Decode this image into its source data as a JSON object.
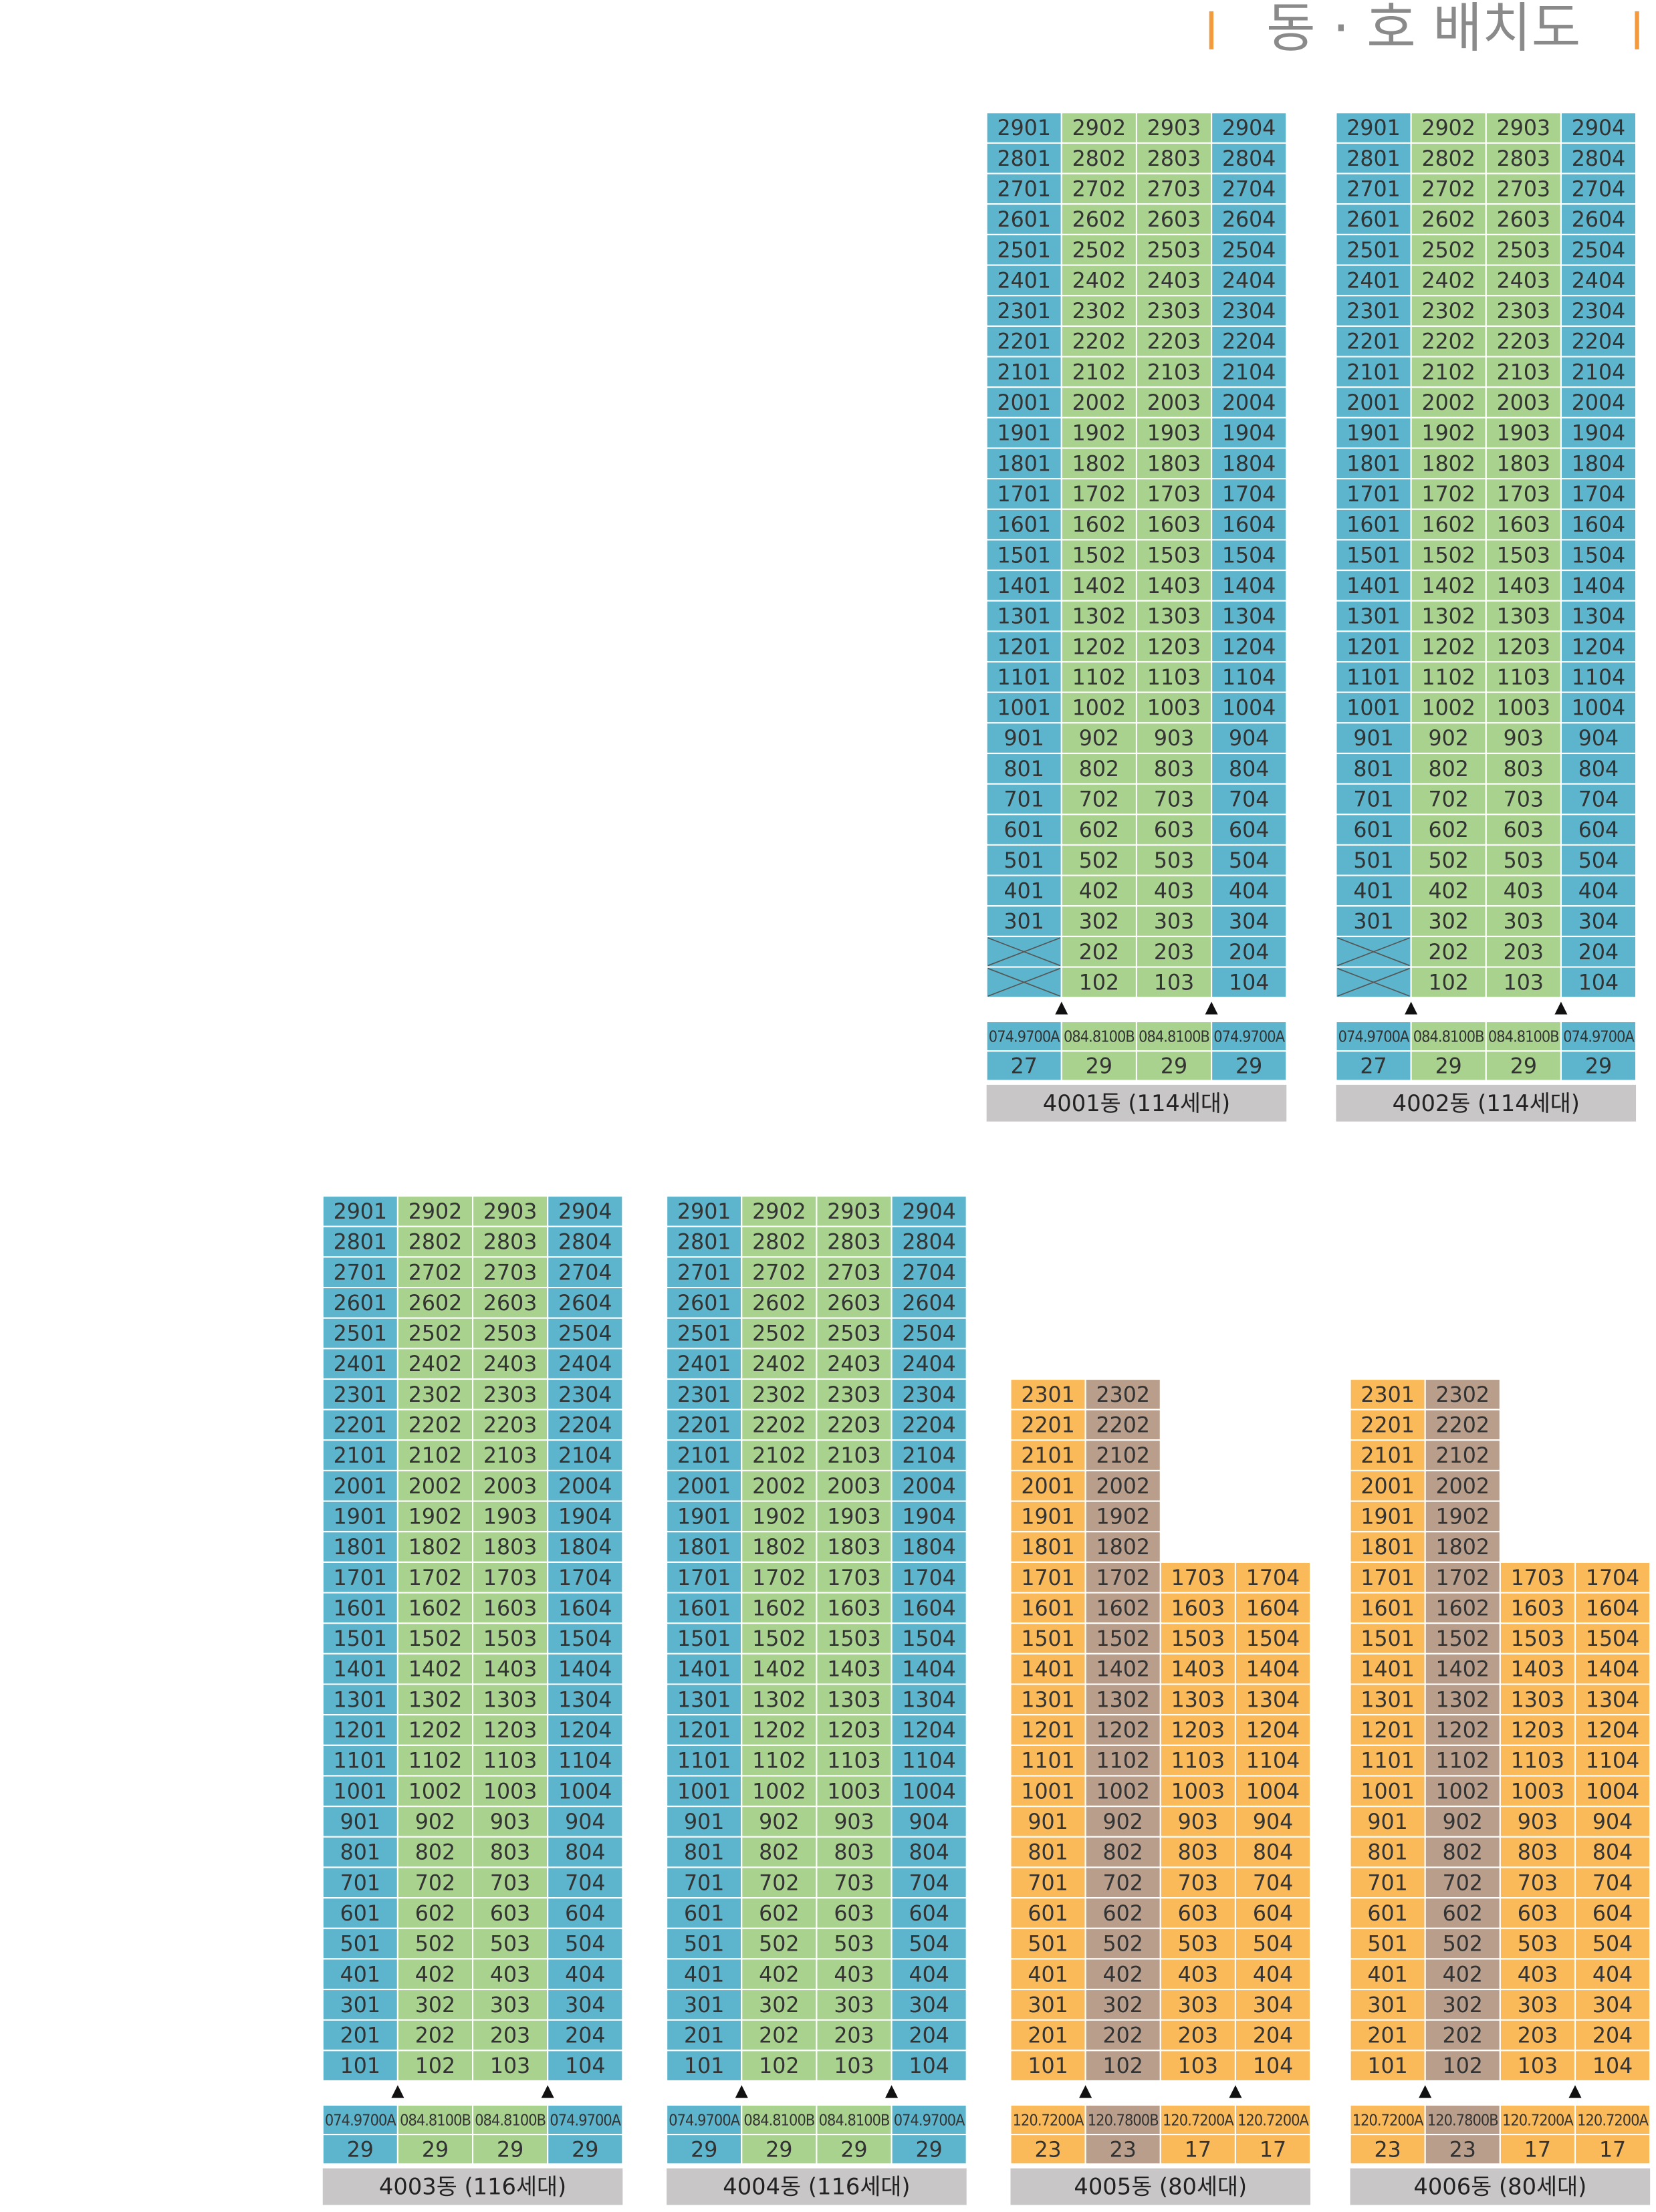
{
  "header": {
    "title": "동 · 호 배치도"
  },
  "buildings": [
    {
      "name": "4001동 (114세대)",
      "colors": [
        "#5cb5cd",
        "#a9d28f",
        "#a9d28f",
        "#5cb5cd"
      ],
      "rows": [
        [
          "2901",
          "2902",
          "2903",
          "2904"
        ],
        [
          "2801",
          "2802",
          "2803",
          "2804"
        ],
        [
          "2701",
          "2702",
          "2703",
          "2704"
        ],
        [
          "2601",
          "2602",
          "2603",
          "2604"
        ],
        [
          "2501",
          "2502",
          "2503",
          "2504"
        ],
        [
          "2401",
          "2402",
          "2403",
          "2404"
        ],
        [
          "2301",
          "2302",
          "2303",
          "2304"
        ],
        [
          "2201",
          "2202",
          "2203",
          "2204"
        ],
        [
          "2101",
          "2102",
          "2103",
          "2104"
        ],
        [
          "2001",
          "2002",
          "2003",
          "2004"
        ],
        [
          "1901",
          "1902",
          "1903",
          "1904"
        ],
        [
          "1801",
          "1802",
          "1803",
          "1804"
        ],
        [
          "1701",
          "1702",
          "1703",
          "1704"
        ],
        [
          "1601",
          "1602",
          "1603",
          "1604"
        ],
        [
          "1501",
          "1502",
          "1503",
          "1504"
        ],
        [
          "1401",
          "1402",
          "1403",
          "1404"
        ],
        [
          "1301",
          "1302",
          "1303",
          "1304"
        ],
        [
          "1201",
          "1202",
          "1203",
          "1204"
        ],
        [
          "1101",
          "1102",
          "1103",
          "1104"
        ],
        [
          "1001",
          "1002",
          "1003",
          "1004"
        ],
        [
          "901",
          "902",
          "903",
          "904"
        ],
        [
          "801",
          "802",
          "803",
          "804"
        ],
        [
          "701",
          "702",
          "703",
          "704"
        ],
        [
          "601",
          "602",
          "603",
          "604"
        ],
        [
          "501",
          "502",
          "503",
          "504"
        ],
        [
          "401",
          "402",
          "403",
          "404"
        ],
        [
          "301",
          "302",
          "303",
          "304"
        ],
        [
          null,
          "202",
          "203",
          "204"
        ],
        [
          null,
          "102",
          "103",
          "104"
        ]
      ],
      "types": [
        "074.9700A",
        "084.8100B",
        "084.8100B",
        "074.9700A"
      ],
      "counts": [
        27,
        29,
        29,
        29
      ]
    },
    {
      "name": "4002동 (114세대)",
      "colors": [
        "#5cb5cd",
        "#a9d28f",
        "#a9d28f",
        "#5cb5cd"
      ],
      "rows": [
        [
          "2901",
          "2902",
          "2903",
          "2904"
        ],
        [
          "2801",
          "2802",
          "2803",
          "2804"
        ],
        [
          "2701",
          "2702",
          "2703",
          "2704"
        ],
        [
          "2601",
          "2602",
          "2603",
          "2604"
        ],
        [
          "2501",
          "2502",
          "2503",
          "2504"
        ],
        [
          "2401",
          "2402",
          "2403",
          "2404"
        ],
        [
          "2301",
          "2302",
          "2303",
          "2304"
        ],
        [
          "2201",
          "2202",
          "2203",
          "2204"
        ],
        [
          "2101",
          "2102",
          "2103",
          "2104"
        ],
        [
          "2001",
          "2002",
          "2003",
          "2004"
        ],
        [
          "1901",
          "1902",
          "1903",
          "1904"
        ],
        [
          "1801",
          "1802",
          "1803",
          "1804"
        ],
        [
          "1701",
          "1702",
          "1703",
          "1704"
        ],
        [
          "1601",
          "1602",
          "1603",
          "1604"
        ],
        [
          "1501",
          "1502",
          "1503",
          "1504"
        ],
        [
          "1401",
          "1402",
          "1403",
          "1404"
        ],
        [
          "1301",
          "1302",
          "1303",
          "1304"
        ],
        [
          "1201",
          "1202",
          "1203",
          "1204"
        ],
        [
          "1101",
          "1102",
          "1103",
          "1104"
        ],
        [
          "1001",
          "1002",
          "1003",
          "1004"
        ],
        [
          "901",
          "902",
          "903",
          "904"
        ],
        [
          "801",
          "802",
          "803",
          "804"
        ],
        [
          "701",
          "702",
          "703",
          "704"
        ],
        [
          "601",
          "602",
          "603",
          "604"
        ],
        [
          "501",
          "502",
          "503",
          "504"
        ],
        [
          "401",
          "402",
          "403",
          "404"
        ],
        [
          "301",
          "302",
          "303",
          "304"
        ],
        [
          null,
          "202",
          "203",
          "204"
        ],
        [
          null,
          "102",
          "103",
          "104"
        ]
      ],
      "types": [
        "074.9700A",
        "084.8100B",
        "084.8100B",
        "074.9700A"
      ],
      "counts": [
        27,
        29,
        29,
        29
      ]
    },
    {
      "name": "4003동 (116세대)",
      "colors": [
        "#5cb5cd",
        "#a9d28f",
        "#a9d28f",
        "#5cb5cd"
      ],
      "rows": [
        [
          "2901",
          "2902",
          "2903",
          "2904"
        ],
        [
          "2801",
          "2802",
          "2803",
          "2804"
        ],
        [
          "2701",
          "2702",
          "2703",
          "2704"
        ],
        [
          "2601",
          "2602",
          "2603",
          "2604"
        ],
        [
          "2501",
          "2502",
          "2503",
          "2504"
        ],
        [
          "2401",
          "2402",
          "2403",
          "2404"
        ],
        [
          "2301",
          "2302",
          "2303",
          "2304"
        ],
        [
          "2201",
          "2202",
          "2203",
          "2204"
        ],
        [
          "2101",
          "2102",
          "2103",
          "2104"
        ],
        [
          "2001",
          "2002",
          "2003",
          "2004"
        ],
        [
          "1901",
          "1902",
          "1903",
          "1904"
        ],
        [
          "1801",
          "1802",
          "1803",
          "1804"
        ],
        [
          "1701",
          "1702",
          "1703",
          "1704"
        ],
        [
          "1601",
          "1602",
          "1603",
          "1604"
        ],
        [
          "1501",
          "1502",
          "1503",
          "1504"
        ],
        [
          "1401",
          "1402",
          "1403",
          "1404"
        ],
        [
          "1301",
          "1302",
          "1303",
          "1304"
        ],
        [
          "1201",
          "1202",
          "1203",
          "1204"
        ],
        [
          "1101",
          "1102",
          "1103",
          "1104"
        ],
        [
          "1001",
          "1002",
          "1003",
          "1004"
        ],
        [
          "901",
          "902",
          "903",
          "904"
        ],
        [
          "801",
          "802",
          "803",
          "804"
        ],
        [
          "701",
          "702",
          "703",
          "704"
        ],
        [
          "601",
          "602",
          "603",
          "604"
        ],
        [
          "501",
          "502",
          "503",
          "504"
        ],
        [
          "401",
          "402",
          "403",
          "404"
        ],
        [
          "301",
          "302",
          "303",
          "304"
        ],
        [
          "201",
          "202",
          "203",
          "204"
        ],
        [
          "101",
          "102",
          "103",
          "104"
        ]
      ],
      "types": [
        "074.9700A",
        "084.8100B",
        "084.8100B",
        "074.9700A"
      ],
      "counts": [
        29,
        29,
        29,
        29
      ]
    },
    {
      "name": "4004동 (116세대)",
      "colors": [
        "#5cb5cd",
        "#a9d28f",
        "#a9d28f",
        "#5cb5cd"
      ],
      "rows": [
        [
          "2901",
          "2902",
          "2903",
          "2904"
        ],
        [
          "2801",
          "2802",
          "2803",
          "2804"
        ],
        [
          "2701",
          "2702",
          "2703",
          "2704"
        ],
        [
          "2601",
          "2602",
          "2603",
          "2604"
        ],
        [
          "2501",
          "2502",
          "2503",
          "2504"
        ],
        [
          "2401",
          "2402",
          "2403",
          "2404"
        ],
        [
          "2301",
          "2302",
          "2303",
          "2304"
        ],
        [
          "2201",
          "2202",
          "2203",
          "2204"
        ],
        [
          "2101",
          "2102",
          "2103",
          "2104"
        ],
        [
          "2001",
          "2002",
          "2003",
          "2004"
        ],
        [
          "1901",
          "1902",
          "1903",
          "1904"
        ],
        [
          "1801",
          "1802",
          "1803",
          "1804"
        ],
        [
          "1701",
          "1702",
          "1703",
          "1704"
        ],
        [
          "1601",
          "1602",
          "1603",
          "1604"
        ],
        [
          "1501",
          "1502",
          "1503",
          "1504"
        ],
        [
          "1401",
          "1402",
          "1403",
          "1404"
        ],
        [
          "1301",
          "1302",
          "1303",
          "1304"
        ],
        [
          "1201",
          "1202",
          "1203",
          "1204"
        ],
        [
          "1101",
          "1102",
          "1103",
          "1104"
        ],
        [
          "1001",
          "1002",
          "1003",
          "1004"
        ],
        [
          "901",
          "902",
          "903",
          "904"
        ],
        [
          "801",
          "802",
          "803",
          "804"
        ],
        [
          "701",
          "702",
          "703",
          "704"
        ],
        [
          "601",
          "602",
          "603",
          "604"
        ],
        [
          "501",
          "502",
          "503",
          "504"
        ],
        [
          "401",
          "402",
          "403",
          "404"
        ],
        [
          "301",
          "302",
          "303",
          "304"
        ],
        [
          "201",
          "202",
          "203",
          "204"
        ],
        [
          "101",
          "102",
          "103",
          "104"
        ]
      ],
      "types": [
        "074.9700A",
        "084.8100B",
        "084.8100B",
        "074.9700A"
      ],
      "counts": [
        29,
        29,
        29,
        29
      ]
    },
    {
      "name": "4005동 (80세대)",
      "colors": [
        "#fbba5a",
        "#b89e8b",
        "#fbba5a",
        "#fbba5a"
      ],
      "rows": [
        [
          "2301",
          "2302",
          null,
          null
        ],
        [
          "2201",
          "2202",
          null,
          null
        ],
        [
          "2101",
          "2102",
          null,
          null
        ],
        [
          "2001",
          "2002",
          null,
          null
        ],
        [
          "1901",
          "1902",
          null,
          null
        ],
        [
          "1801",
          "1802",
          null,
          null
        ],
        [
          "1701",
          "1702",
          "1703",
          "1704"
        ],
        [
          "1601",
          "1602",
          "1603",
          "1604"
        ],
        [
          "1501",
          "1502",
          "1503",
          "1504"
        ],
        [
          "1401",
          "1402",
          "1403",
          "1404"
        ],
        [
          "1301",
          "1302",
          "1303",
          "1304"
        ],
        [
          "1201",
          "1202",
          "1203",
          "1204"
        ],
        [
          "1101",
          "1102",
          "1103",
          "1104"
        ],
        [
          "1001",
          "1002",
          "1003",
          "1004"
        ],
        [
          "901",
          "902",
          "903",
          "904"
        ],
        [
          "801",
          "802",
          "803",
          "804"
        ],
        [
          "701",
          "702",
          "703",
          "704"
        ],
        [
          "601",
          "602",
          "603",
          "604"
        ],
        [
          "501",
          "502",
          "503",
          "504"
        ],
        [
          "401",
          "402",
          "403",
          "404"
        ],
        [
          "301",
          "302",
          "303",
          "304"
        ],
        [
          "201",
          "202",
          "203",
          "204"
        ],
        [
          "101",
          "102",
          "103",
          "104"
        ]
      ],
      "types": [
        "120.7200A",
        "120.7800B",
        "120.7200A",
        "120.7200A"
      ],
      "counts": [
        23,
        23,
        17,
        17
      ]
    },
    {
      "name": "4006동 (80세대)",
      "colors": [
        "#fbba5a",
        "#b89e8b",
        "#fbba5a",
        "#fbba5a"
      ],
      "rows": [
        [
          "2301",
          "2302",
          null,
          null
        ],
        [
          "2201",
          "2202",
          null,
          null
        ],
        [
          "2101",
          "2102",
          null,
          null
        ],
        [
          "2001",
          "2002",
          null,
          null
        ],
        [
          "1901",
          "1902",
          null,
          null
        ],
        [
          "1801",
          "1802",
          null,
          null
        ],
        [
          "1701",
          "1702",
          "1703",
          "1704"
        ],
        [
          "1601",
          "1602",
          "1603",
          "1604"
        ],
        [
          "1501",
          "1502",
          "1503",
          "1504"
        ],
        [
          "1401",
          "1402",
          "1403",
          "1404"
        ],
        [
          "1301",
          "1302",
          "1303",
          "1304"
        ],
        [
          "1201",
          "1202",
          "1203",
          "1204"
        ],
        [
          "1101",
          "1102",
          "1103",
          "1104"
        ],
        [
          "1001",
          "1002",
          "1003",
          "1004"
        ],
        [
          "901",
          "902",
          "903",
          "904"
        ],
        [
          "801",
          "802",
          "803",
          "804"
        ],
        [
          "701",
          "702",
          "703",
          "704"
        ],
        [
          "601",
          "602",
          "603",
          "604"
        ],
        [
          "501",
          "502",
          "503",
          "504"
        ],
        [
          "401",
          "402",
          "403",
          "404"
        ],
        [
          "301",
          "302",
          "303",
          "304"
        ],
        [
          "201",
          "202",
          "203",
          "204"
        ],
        [
          "101",
          "102",
          "103",
          "104"
        ]
      ],
      "types": [
        "120.7200A",
        "120.7800B",
        "120.7200A",
        "120.7200A"
      ],
      "counts": [
        23,
        23,
        17,
        17
      ]
    }
  ]
}
